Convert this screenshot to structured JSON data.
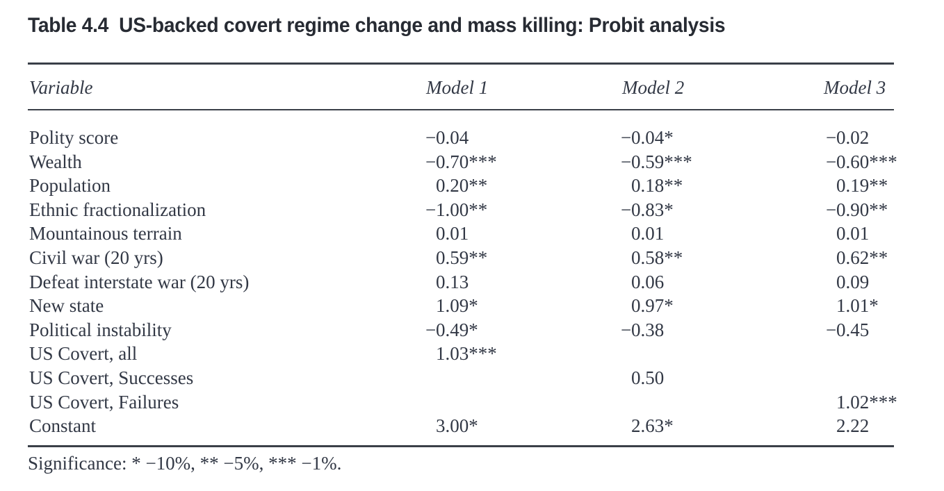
{
  "title": "Table 4.4  US-backed covert regime change and mass killing: Probit analysis",
  "table": {
    "columns": [
      "Variable",
      "Model 1",
      "Model 2",
      "Model 3"
    ],
    "rows": [
      {
        "variable": "Polity score",
        "m1": "−0.04",
        "m2": "−0.04*",
        "m3": "−0.02"
      },
      {
        "variable": "Wealth",
        "m1": "−0.70***",
        "m2": "−0.59***",
        "m3": "−0.60***"
      },
      {
        "variable": "Population",
        "m1": "0.20**",
        "m2": "0.18**",
        "m3": "0.19**"
      },
      {
        "variable": "Ethnic fractionalization",
        "m1": "−1.00**",
        "m2": "−0.83*",
        "m3": "−0.90**"
      },
      {
        "variable": "Mountainous terrain",
        "m1": "0.01",
        "m2": "0.01",
        "m3": "0.01"
      },
      {
        "variable": "Civil war (20 yrs)",
        "m1": "0.59**",
        "m2": "0.58**",
        "m3": "0.62**"
      },
      {
        "variable": "Defeat interstate war (20 yrs)",
        "m1": "0.13",
        "m2": "0.06",
        "m3": "0.09"
      },
      {
        "variable": "New state",
        "m1": "1.09*",
        "m2": "0.97*",
        "m3": "1.01*"
      },
      {
        "variable": "Political instability",
        "m1": "−0.49*",
        "m2": "−0.38",
        "m3": "−0.45"
      },
      {
        "variable": "US Covert, all",
        "m1": "1.03***",
        "m2": "",
        "m3": ""
      },
      {
        "variable": "US Covert, Successes",
        "m1": "",
        "m2": "0.50",
        "m3": ""
      },
      {
        "variable": "US Covert, Failures",
        "m1": "",
        "m2": "",
        "m3": "1.02***"
      },
      {
        "variable": "Constant",
        "m1": "3.00*",
        "m2": "2.63*",
        "m3": "2.22"
      }
    ]
  },
  "footnote": "Significance: * −10%, ** −5%, *** −1%.",
  "colors": {
    "text": "#323845",
    "title": "#272b33",
    "rule": "#3a3f48",
    "background": "#ffffff"
  }
}
